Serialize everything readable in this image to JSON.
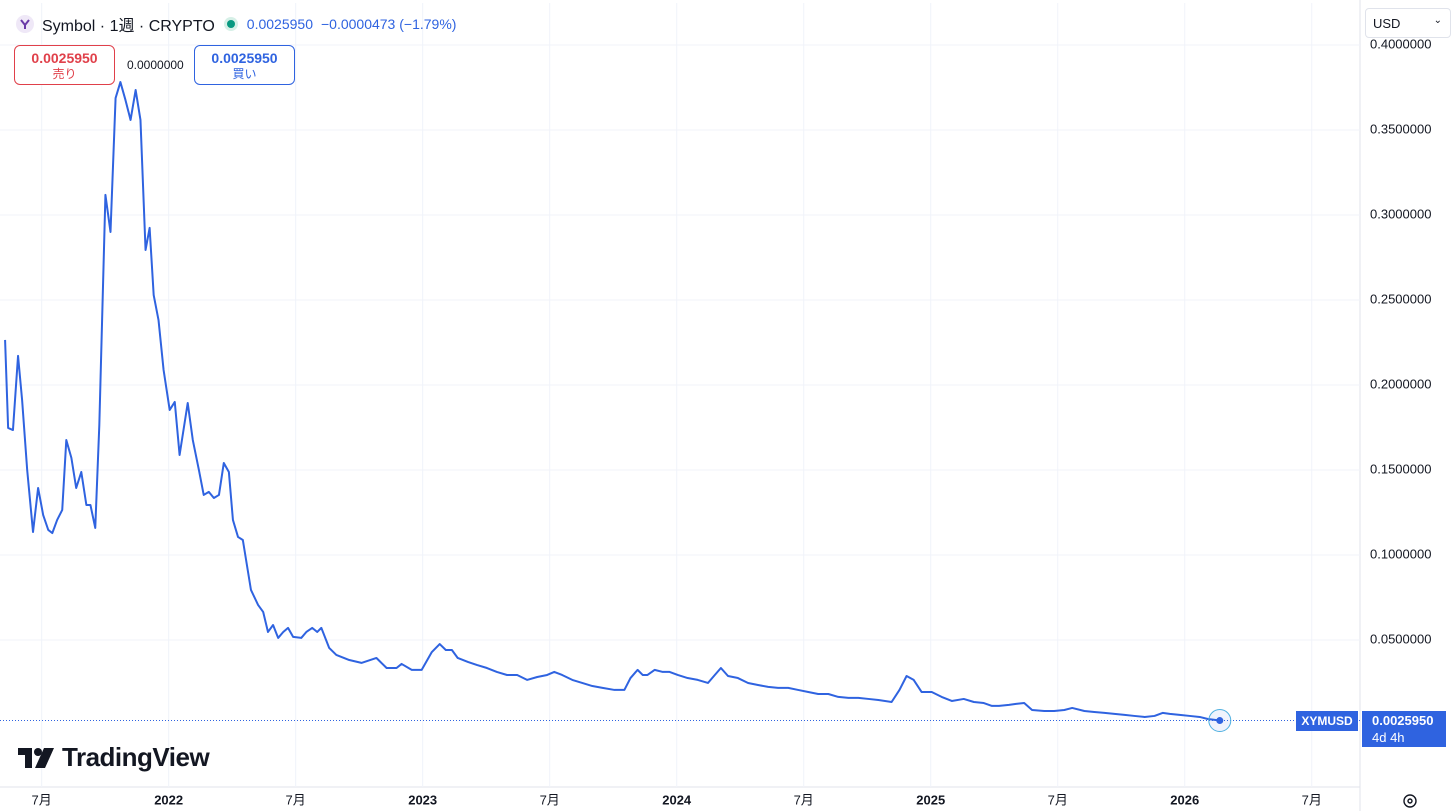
{
  "header": {
    "symbol": "Symbol · 1週 · CRYPTO",
    "price": "0.0025950",
    "change": "−0.0000473 (−1.79%)"
  },
  "trade": {
    "sell_price": "0.0025950",
    "sell_label": "売り",
    "spread": "0.0000000",
    "buy_price": "0.0025950",
    "buy_label": "買い"
  },
  "currency": "USD",
  "last": {
    "price": "0.0025950",
    "countdown": "4d 4h"
  },
  "logo": "TradingView",
  "chart_data": {
    "type": "line",
    "x": [
      2021.356,
      2021.368,
      2021.387,
      2021.407,
      2021.423,
      2021.443,
      2021.466,
      2021.486,
      2021.506,
      2021.526,
      2021.542,
      2021.561,
      2021.581,
      2021.597,
      2021.617,
      2021.636,
      2021.656,
      2021.676,
      2021.692,
      2021.711,
      2021.727,
      2021.751,
      2021.771,
      2021.791,
      2021.81,
      2021.83,
      2021.85,
      2021.87,
      2021.889,
      2021.909,
      2021.925,
      2021.941,
      2021.96,
      2021.98,
      2022.004,
      2022.024,
      2022.043,
      2022.075,
      2022.095,
      2022.119,
      2022.138,
      2022.158,
      2022.178,
      2022.198,
      2022.217,
      2022.237,
      2022.253,
      2022.273,
      2022.292,
      2022.324,
      2022.352,
      2022.372,
      2022.391,
      2022.411,
      2022.431,
      2022.451,
      2022.47,
      2022.49,
      2022.522,
      2022.542,
      2022.565,
      2022.585,
      2022.601,
      2022.632,
      2022.66,
      2022.711,
      2022.759,
      2022.818,
      2022.858,
      2022.897,
      2022.917,
      2022.957,
      2022.996,
      2023.036,
      2023.067,
      2023.091,
      2023.115,
      2023.138,
      2023.178,
      2023.213,
      2023.253,
      2023.292,
      2023.332,
      2023.372,
      2023.411,
      2023.451,
      2023.49,
      2023.518,
      2023.549,
      2023.589,
      2023.628,
      2023.668,
      2023.708,
      2023.755,
      2023.794,
      2023.818,
      2023.846,
      2023.866,
      2023.885,
      2023.913,
      2023.945,
      2023.972,
      2024.004,
      2024.043,
      2024.083,
      2024.123,
      2024.15,
      2024.174,
      2024.202,
      2024.241,
      2024.281,
      2024.32,
      2024.36,
      2024.399,
      2024.439,
      2024.478,
      2024.518,
      2024.557,
      2024.597,
      2024.636,
      2024.676,
      2024.715,
      2024.755,
      2024.794,
      2024.846,
      2024.877,
      2024.905,
      2024.933,
      2024.964,
      2025.004,
      2025.043,
      2025.083,
      2025.13,
      2025.17,
      2025.209,
      2025.241,
      2025.269,
      2025.308,
      2025.336,
      2025.368,
      2025.399,
      2025.447,
      2025.486,
      2025.526,
      2025.557,
      2025.605,
      2025.644,
      2025.684,
      2025.723,
      2025.763,
      2025.802,
      2025.842,
      2025.881,
      2025.913,
      2025.941,
      2025.98,
      2026.02,
      2026.059,
      2026.091,
      2026.138
    ],
    "series": [
      {
        "name": "XYMUSD",
        "color": "#2f63e0",
        "values": [
          0.2265,
          0.1747,
          0.1735,
          0.2171,
          0.1912,
          0.15,
          0.1135,
          0.1394,
          0.1235,
          0.1147,
          0.1129,
          0.1206,
          0.1265,
          0.1676,
          0.1571,
          0.1394,
          0.1488,
          0.1294,
          0.1294,
          0.1159,
          0.1765,
          0.3118,
          0.29,
          0.3688,
          0.3782,
          0.3676,
          0.3559,
          0.3735,
          0.3559,
          0.2794,
          0.2924,
          0.2529,
          0.2382,
          0.2088,
          0.1853,
          0.19,
          0.1588,
          0.1894,
          0.1676,
          0.15,
          0.1353,
          0.1371,
          0.1335,
          0.1353,
          0.1541,
          0.1488,
          0.1206,
          0.1106,
          0.1088,
          0.0794,
          0.0706,
          0.0665,
          0.0547,
          0.0588,
          0.0512,
          0.0547,
          0.0571,
          0.0518,
          0.0512,
          0.0547,
          0.0571,
          0.0547,
          0.0571,
          0.0453,
          0.0412,
          0.0382,
          0.0365,
          0.0394,
          0.0335,
          0.0335,
          0.0359,
          0.0324,
          0.0324,
          0.0429,
          0.0476,
          0.0441,
          0.0441,
          0.0394,
          0.0371,
          0.0353,
          0.0335,
          0.0312,
          0.0294,
          0.0294,
          0.0265,
          0.0282,
          0.0294,
          0.0312,
          0.0294,
          0.0265,
          0.0247,
          0.0229,
          0.0218,
          0.0206,
          0.0206,
          0.0276,
          0.0324,
          0.0294,
          0.0294,
          0.0324,
          0.0312,
          0.0312,
          0.0294,
          0.0276,
          0.0265,
          0.0247,
          0.0294,
          0.0335,
          0.0288,
          0.0276,
          0.0247,
          0.0235,
          0.0224,
          0.0218,
          0.0218,
          0.0206,
          0.0194,
          0.0182,
          0.0182,
          0.0165,
          0.0159,
          0.0159,
          0.0153,
          0.0147,
          0.0135,
          0.0206,
          0.0288,
          0.0265,
          0.0194,
          0.0194,
          0.0165,
          0.0141,
          0.0153,
          0.0135,
          0.0129,
          0.0112,
          0.0112,
          0.0118,
          0.0124,
          0.0129,
          0.0088,
          0.0082,
          0.0082,
          0.0088,
          0.01,
          0.0082,
          0.0076,
          0.0071,
          0.0065,
          0.0059,
          0.0053,
          0.0047,
          0.0053,
          0.0071,
          0.0065,
          0.0059,
          0.0053,
          0.0047,
          0.0035,
          0.002595
        ]
      }
    ],
    "xlim": [
      2021.336,
      2026.69
    ],
    "xticks": [
      {
        "value": 2021.5,
        "label": "7月"
      },
      2022,
      {
        "value": 2022.5,
        "label": "7月"
      },
      2023,
      {
        "value": 2023.5,
        "label": "7月"
      },
      2024,
      {
        "value": 2024.5,
        "label": "7月"
      },
      2025,
      {
        "value": 2025.5,
        "label": "7月"
      },
      2026,
      {
        "value": 2026.5,
        "label": "7月"
      }
    ],
    "ylim": [
      -0.0365,
      0.4247
    ],
    "yticks": [
      {
        "value": 0.05,
        "label": "0.0500000"
      },
      {
        "value": 0.1,
        "label": "0.1000000"
      },
      {
        "value": 0.15,
        "label": "0.1500000"
      },
      {
        "value": 0.2,
        "label": "0.2000000"
      },
      {
        "value": 0.25,
        "label": "0.2500000"
      },
      {
        "value": 0.3,
        "label": "0.3000000"
      },
      {
        "value": 0.35,
        "label": "0.3500000"
      },
      {
        "value": 0.4,
        "label": "0.4000000"
      }
    ],
    "grid": true
  }
}
